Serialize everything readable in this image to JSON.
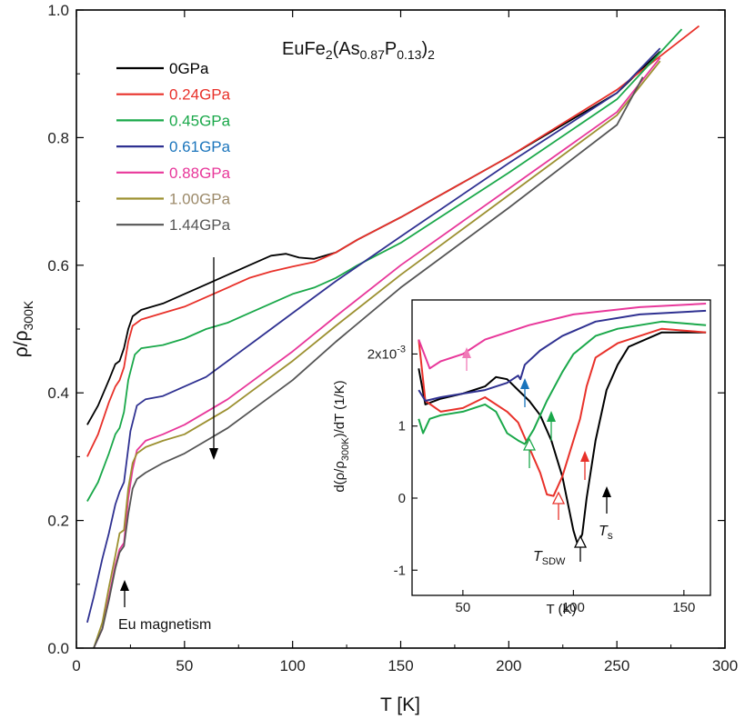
{
  "chart_data": [
    {
      "type": "line",
      "title_parts": [
        "EuFe",
        "2",
        "(As",
        "0.87",
        "P",
        "0.13",
        ")",
        "2"
      ],
      "xlabel": "T [K]",
      "ylabel_parts": [
        "ρ/ρ",
        "300K"
      ],
      "xlim": [
        0,
        300
      ],
      "ylim": [
        0,
        1.0
      ],
      "xticks": [
        "0",
        "50",
        "100",
        "150",
        "200",
        "250",
        "300"
      ],
      "yticks": [
        "0.0",
        "0.2",
        "0.4",
        "0.6",
        "0.8",
        "1.0"
      ],
      "annotation": "Eu magnetism",
      "series": [
        {
          "name": "0GPa",
          "color": "#000000",
          "points": [
            [
              5,
              0.35
            ],
            [
              10,
              0.38
            ],
            [
              15,
              0.42
            ],
            [
              18,
              0.445
            ],
            [
              20,
              0.45
            ],
            [
              22,
              0.47
            ],
            [
              24,
              0.5
            ],
            [
              26,
              0.52
            ],
            [
              30,
              0.53
            ],
            [
              40,
              0.54
            ],
            [
              50,
              0.555
            ],
            [
              60,
              0.57
            ],
            [
              70,
              0.585
            ],
            [
              80,
              0.6
            ],
            [
              90,
              0.615
            ],
            [
              97,
              0.618
            ],
            [
              103,
              0.612
            ],
            [
              110,
              0.61
            ],
            [
              120,
              0.62
            ],
            [
              130,
              0.64
            ],
            [
              150,
              0.675
            ],
            [
              200,
              0.77
            ],
            [
              250,
              0.87
            ],
            [
              270,
              0.935
            ]
          ]
        },
        {
          "name": "0.24GPa",
          "color": "#e8312a",
          "points": [
            [
              5,
              0.3
            ],
            [
              10,
              0.335
            ],
            [
              15,
              0.385
            ],
            [
              18,
              0.41
            ],
            [
              20,
              0.42
            ],
            [
              22,
              0.44
            ],
            [
              24,
              0.48
            ],
            [
              26,
              0.505
            ],
            [
              30,
              0.515
            ],
            [
              40,
              0.525
            ],
            [
              50,
              0.535
            ],
            [
              60,
              0.55
            ],
            [
              70,
              0.565
            ],
            [
              80,
              0.58
            ],
            [
              90,
              0.59
            ],
            [
              100,
              0.598
            ],
            [
              110,
              0.605
            ],
            [
              120,
              0.62
            ],
            [
              130,
              0.64
            ],
            [
              150,
              0.675
            ],
            [
              200,
              0.77
            ],
            [
              250,
              0.875
            ],
            [
              288,
              0.975
            ]
          ]
        },
        {
          "name": "0.45GPa",
          "color": "#1aa84a",
          "points": [
            [
              5,
              0.23
            ],
            [
              10,
              0.26
            ],
            [
              15,
              0.305
            ],
            [
              18,
              0.335
            ],
            [
              20,
              0.345
            ],
            [
              22,
              0.37
            ],
            [
              24,
              0.42
            ],
            [
              27,
              0.46
            ],
            [
              30,
              0.47
            ],
            [
              40,
              0.475
            ],
            [
              50,
              0.485
            ],
            [
              60,
              0.5
            ],
            [
              70,
              0.51
            ],
            [
              80,
              0.525
            ],
            [
              90,
              0.54
            ],
            [
              100,
              0.555
            ],
            [
              110,
              0.565
            ],
            [
              120,
              0.58
            ],
            [
              130,
              0.6
            ],
            [
              150,
              0.635
            ],
            [
              200,
              0.745
            ],
            [
              250,
              0.86
            ],
            [
              280,
              0.97
            ]
          ]
        },
        {
          "name": "0.61GPa",
          "color": "#2f3191",
          "points": [
            [
              5,
              0.04
            ],
            [
              8,
              0.08
            ],
            [
              12,
              0.14
            ],
            [
              15,
              0.18
            ],
            [
              18,
              0.225
            ],
            [
              20,
              0.245
            ],
            [
              22,
              0.26
            ],
            [
              25,
              0.34
            ],
            [
              28,
              0.38
            ],
            [
              32,
              0.39
            ],
            [
              40,
              0.395
            ],
            [
              50,
              0.41
            ],
            [
              60,
              0.425
            ],
            [
              70,
              0.45
            ],
            [
              80,
              0.475
            ],
            [
              100,
              0.525
            ],
            [
              120,
              0.575
            ],
            [
              150,
              0.645
            ],
            [
              200,
              0.76
            ],
            [
              250,
              0.87
            ],
            [
              270,
              0.94
            ]
          ]
        },
        {
          "name": "0.88GPa",
          "color": "#e8379a",
          "points": [
            [
              8,
              0.0
            ],
            [
              12,
              0.03
            ],
            [
              15,
              0.08
            ],
            [
              18,
              0.13
            ],
            [
              20,
              0.155
            ],
            [
              22,
              0.165
            ],
            [
              24,
              0.235
            ],
            [
              26,
              0.28
            ],
            [
              28,
              0.31
            ],
            [
              32,
              0.325
            ],
            [
              40,
              0.335
            ],
            [
              50,
              0.35
            ],
            [
              60,
              0.37
            ],
            [
              70,
              0.39
            ],
            [
              80,
              0.415
            ],
            [
              100,
              0.465
            ],
            [
              120,
              0.52
            ],
            [
              150,
              0.6
            ],
            [
              200,
              0.72
            ],
            [
              250,
              0.84
            ],
            [
              270,
              0.925
            ]
          ]
        },
        {
          "name": "1.00GPa",
          "color": "#9c9030",
          "points": [
            [
              8,
              0.0
            ],
            [
              12,
              0.04
            ],
            [
              15,
              0.095
            ],
            [
              18,
              0.145
            ],
            [
              20,
              0.18
            ],
            [
              22,
              0.185
            ],
            [
              24,
              0.25
            ],
            [
              26,
              0.29
            ],
            [
              28,
              0.305
            ],
            [
              32,
              0.315
            ],
            [
              40,
              0.325
            ],
            [
              50,
              0.335
            ],
            [
              60,
              0.355
            ],
            [
              70,
              0.375
            ],
            [
              80,
              0.4
            ],
            [
              100,
              0.45
            ],
            [
              120,
              0.505
            ],
            [
              150,
              0.585
            ],
            [
              200,
              0.71
            ],
            [
              250,
              0.835
            ],
            [
              270,
              0.92
            ]
          ]
        },
        {
          "name": "1.44GPa",
          "color": "#555555",
          "points": [
            [
              8,
              0.0
            ],
            [
              12,
              0.03
            ],
            [
              15,
              0.075
            ],
            [
              18,
              0.125
            ],
            [
              20,
              0.15
            ],
            [
              22,
              0.16
            ],
            [
              24,
              0.21
            ],
            [
              26,
              0.25
            ],
            [
              28,
              0.265
            ],
            [
              32,
              0.275
            ],
            [
              40,
              0.29
            ],
            [
              50,
              0.305
            ],
            [
              60,
              0.325
            ],
            [
              70,
              0.345
            ],
            [
              80,
              0.37
            ],
            [
              100,
              0.42
            ],
            [
              120,
              0.48
            ],
            [
              150,
              0.565
            ],
            [
              200,
              0.69
            ],
            [
              250,
              0.82
            ],
            [
              262,
              0.895
            ]
          ]
        }
      ]
    },
    {
      "type": "line",
      "inset": true,
      "xlabel": "T (K)",
      "ylabel_parts": [
        "d(ρ/ρ",
        "300K",
        ")/dT (1/K)"
      ],
      "xlim": [
        27,
        162
      ],
      "ylim": [
        -1.35,
        2.75
      ],
      "xticks": [
        "50",
        "100",
        "150"
      ],
      "yticks": [
        "-1",
        "0",
        "1",
        "2x10"
      ],
      "ytick_exponent": "-3",
      "tsdw_label": "T",
      "tsdw_sub": "SDW",
      "ts_label": "T",
      "ts_sub": "s",
      "series": [
        {
          "name": "0GPa",
          "color": "#000000",
          "points": [
            [
              30,
              1.8
            ],
            [
              33,
              1.3
            ],
            [
              40,
              1.38
            ],
            [
              50,
              1.45
            ],
            [
              60,
              1.55
            ],
            [
              65,
              1.68
            ],
            [
              70,
              1.65
            ],
            [
              75,
              1.5
            ],
            [
              80,
              1.35
            ],
            [
              85,
              1.15
            ],
            [
              90,
              0.8
            ],
            [
              95,
              0.3
            ],
            [
              100,
              -0.45
            ],
            [
              102,
              -0.65
            ],
            [
              104,
              -0.5
            ],
            [
              106,
              0.0
            ],
            [
              110,
              0.8
            ],
            [
              115,
              1.5
            ],
            [
              120,
              1.85
            ],
            [
              125,
              2.1
            ],
            [
              140,
              2.3
            ],
            [
              160,
              2.3
            ]
          ]
        },
        {
          "name": "0.24GPa",
          "color": "#e8312a",
          "points": [
            [
              30,
              2.2
            ],
            [
              33,
              1.35
            ],
            [
              40,
              1.2
            ],
            [
              50,
              1.25
            ],
            [
              60,
              1.4
            ],
            [
              70,
              1.2
            ],
            [
              75,
              1.05
            ],
            [
              80,
              0.7
            ],
            [
              85,
              0.35
            ],
            [
              88,
              0.05
            ],
            [
              91,
              0.03
            ],
            [
              95,
              0.3
            ],
            [
              100,
              0.8
            ],
            [
              103,
              1.1
            ],
            [
              106,
              1.55
            ],
            [
              110,
              1.95
            ],
            [
              115,
              2.05
            ],
            [
              120,
              2.15
            ],
            [
              140,
              2.35
            ],
            [
              160,
              2.3
            ]
          ]
        },
        {
          "name": "0.45GPa",
          "color": "#1aa84a",
          "points": [
            [
              30,
              1.1
            ],
            [
              32,
              0.9
            ],
            [
              35,
              1.1
            ],
            [
              40,
              1.15
            ],
            [
              50,
              1.2
            ],
            [
              60,
              1.3
            ],
            [
              65,
              1.2
            ],
            [
              70,
              0.9
            ],
            [
              75,
              0.8
            ],
            [
              78,
              0.75
            ],
            [
              82,
              0.95
            ],
            [
              88,
              1.35
            ],
            [
              95,
              1.75
            ],
            [
              100,
              2.0
            ],
            [
              110,
              2.25
            ],
            [
              120,
              2.35
            ],
            [
              140,
              2.45
            ],
            [
              160,
              2.4
            ]
          ]
        },
        {
          "name": "0.61GPa",
          "color": "#2f3191",
          "points": [
            [
              30,
              1.5
            ],
            [
              33,
              1.35
            ],
            [
              40,
              1.4
            ],
            [
              50,
              1.45
            ],
            [
              60,
              1.5
            ],
            [
              70,
              1.6
            ],
            [
              75,
              1.7
            ],
            [
              76,
              1.65
            ],
            [
              78,
              1.85
            ],
            [
              85,
              2.05
            ],
            [
              95,
              2.25
            ],
            [
              110,
              2.45
            ],
            [
              130,
              2.55
            ],
            [
              160,
              2.6
            ]
          ]
        },
        {
          "name": "0.88GPa",
          "color": "#e8379a",
          "points": [
            [
              30,
              2.2
            ],
            [
              35,
              1.8
            ],
            [
              40,
              1.9
            ],
            [
              50,
              2.0
            ],
            [
              60,
              2.2
            ],
            [
              80,
              2.4
            ],
            [
              100,
              2.55
            ],
            [
              130,
              2.65
            ],
            [
              160,
              2.7
            ]
          ]
        }
      ]
    }
  ]
}
